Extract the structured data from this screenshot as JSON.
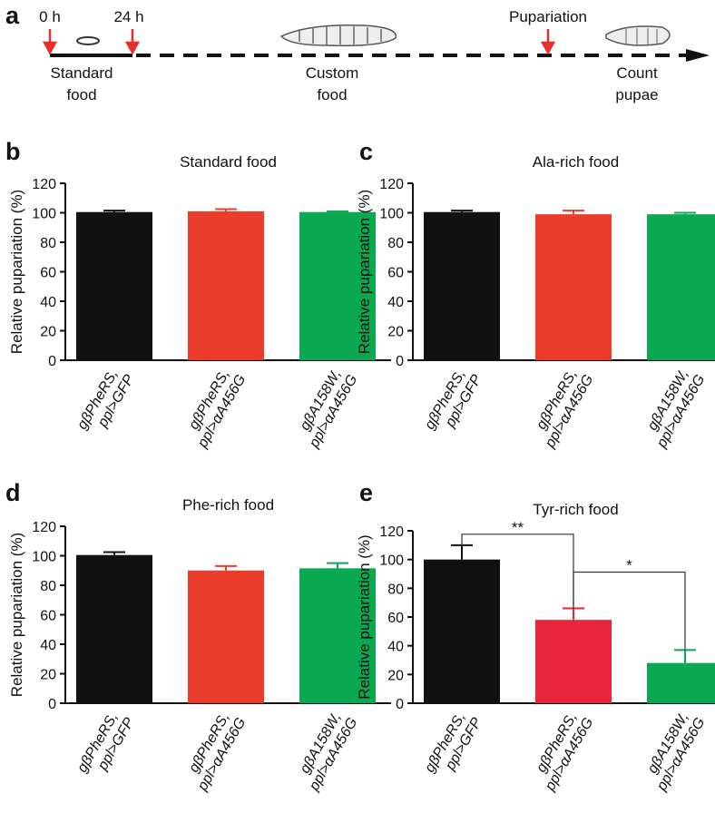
{
  "panel_a": {
    "label": "a",
    "times": [
      "0 h",
      "24 h"
    ],
    "pupariation": "Pupariation",
    "standard_food": [
      "Standard",
      "food"
    ],
    "custom_food": [
      "Custom",
      "food"
    ],
    "count_pupae": [
      "Count",
      "pupae"
    ]
  },
  "chart_data": [
    {
      "type": "bar",
      "panel": "b",
      "title": "Standard food",
      "y_label": "Relative pupariation (%)",
      "categories": [
        "gβPheRS, ppl>GFP",
        "gβPheRS, ppl>αA456G",
        "gβA158W, ppl>αA456G"
      ],
      "values": [
        100.5,
        101,
        100.5
      ],
      "errors": [
        1,
        1.5,
        0.5
      ],
      "colors": [
        "#111111",
        "#ea3b2b",
        "#0aa850"
      ],
      "ylim": [
        0,
        120
      ],
      "yticks": [
        0,
        20,
        40,
        60,
        80,
        100,
        120
      ]
    },
    {
      "type": "bar",
      "panel": "c",
      "title": "Ala-rich food",
      "y_label": "Relative pupariation (%)",
      "categories": [
        "gβPheRS, ppl>GFP",
        "gβPheRS, ppl>αA456G",
        "gβA158W, ppl>αA456G"
      ],
      "values": [
        100.5,
        99,
        99
      ],
      "errors": [
        1,
        2.5,
        1
      ],
      "colors": [
        "#111111",
        "#ea3b2b",
        "#0aa850"
      ],
      "ylim": [
        0,
        120
      ],
      "yticks": [
        0,
        20,
        40,
        60,
        80,
        100,
        120
      ]
    },
    {
      "type": "bar",
      "panel": "d",
      "title": "Phe-rich food",
      "y_label": "Relative pupariation (%)",
      "categories": [
        "gβPheRS, ppl>GFP",
        "gβPheRS, ppl>αA456G",
        "gβA158W, ppl>αA456G"
      ],
      "values": [
        100.5,
        90,
        91.5
      ],
      "errors": [
        2,
        3,
        3.5
      ],
      "colors": [
        "#111111",
        "#ea3b2b",
        "#0aa850"
      ],
      "ylim": [
        0,
        120
      ],
      "yticks": [
        0,
        20,
        40,
        60,
        80,
        100,
        120
      ]
    },
    {
      "type": "bar",
      "panel": "e",
      "title": "Tyr-rich food",
      "y_label": "Relative pupariation (%)",
      "categories": [
        "gβPheRS, ppl>GFP",
        "gβPheRS, ppl>αA456G",
        "gβA158W, ppl>αA456G"
      ],
      "values": [
        100,
        58,
        28
      ],
      "errors": [
        10,
        8,
        9
      ],
      "colors": [
        "#111111",
        "#e8253a",
        "#0aa850"
      ],
      "ylim": [
        0,
        120
      ],
      "yticks": [
        0,
        20,
        40,
        60,
        80,
        100,
        120
      ],
      "significance": [
        {
          "between": [
            0,
            1
          ],
          "label": "**"
        },
        {
          "between": [
            1,
            2
          ],
          "label": "*"
        }
      ]
    }
  ]
}
